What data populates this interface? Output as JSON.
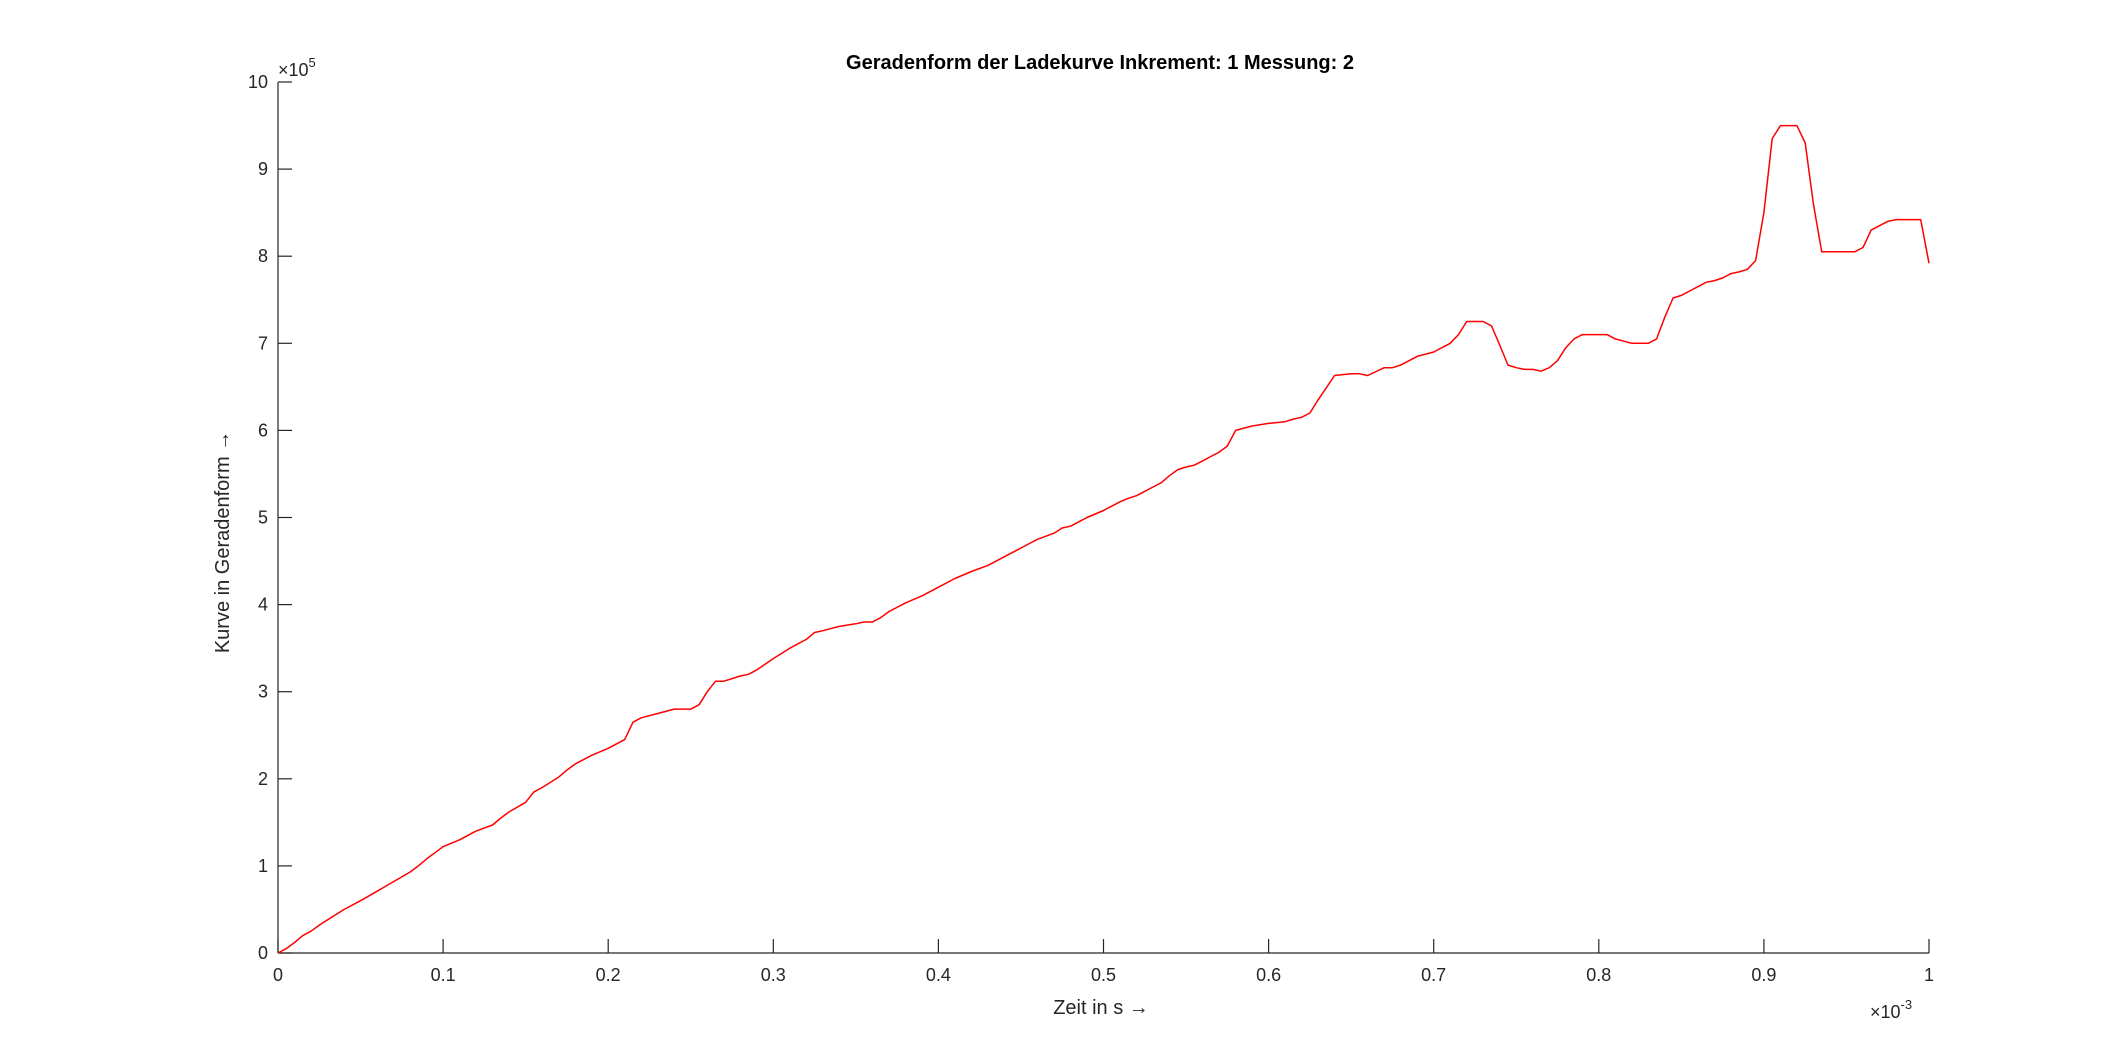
{
  "chart_data": {
    "type": "line",
    "title": "Geradenform der Ladekurve Inkrement: 1 Messung: 2",
    "xlabel": "Zeit in s →",
    "ylabel": "Kurve in Geradenform →",
    "x_multiplier": {
      "base": "×10",
      "exponent": "-3"
    },
    "y_multiplier": {
      "base": "×10",
      "exponent": "5"
    },
    "xlim": [
      0,
      1
    ],
    "ylim": [
      0,
      10
    ],
    "x_ticks": [
      0,
      0.1,
      0.2,
      0.3,
      0.4,
      0.5,
      0.6,
      0.7,
      0.8,
      0.9,
      1
    ],
    "x_tick_labels": [
      "0",
      "0.1",
      "0.2",
      "0.3",
      "0.4",
      "0.5",
      "0.6",
      "0.7",
      "0.8",
      "0.9",
      "1"
    ],
    "y_ticks": [
      0,
      1,
      2,
      3,
      4,
      5,
      6,
      7,
      8,
      9,
      10
    ],
    "y_tick_labels": [
      "0",
      "1",
      "2",
      "3",
      "4",
      "5",
      "6",
      "7",
      "8",
      "9",
      "10"
    ],
    "grid": false,
    "box": false,
    "line_color": "#ff0000",
    "series": [
      {
        "x": [
          0,
          0.005,
          0.01,
          0.015,
          0.02,
          0.025,
          0.03,
          0.04,
          0.05,
          0.06,
          0.07,
          0.08,
          0.085,
          0.09,
          0.1,
          0.11,
          0.12,
          0.13,
          0.135,
          0.14,
          0.15,
          0.155,
          0.16,
          0.17,
          0.175,
          0.18,
          0.19,
          0.2,
          0.21,
          0.215,
          0.22,
          0.23,
          0.24,
          0.25,
          0.255,
          0.26,
          0.265,
          0.27,
          0.28,
          0.285,
          0.29,
          0.3,
          0.31,
          0.32,
          0.325,
          0.33,
          0.34,
          0.35,
          0.355,
          0.36,
          0.365,
          0.37,
          0.38,
          0.39,
          0.4,
          0.41,
          0.42,
          0.43,
          0.44,
          0.45,
          0.455,
          0.46,
          0.47,
          0.475,
          0.48,
          0.485,
          0.49,
          0.5,
          0.51,
          0.515,
          0.52,
          0.53,
          0.535,
          0.54,
          0.545,
          0.55,
          0.555,
          0.56,
          0.565,
          0.57,
          0.575,
          0.58,
          0.59,
          0.6,
          0.61,
          0.615,
          0.62,
          0.625,
          0.63,
          0.64,
          0.65,
          0.655,
          0.66,
          0.67,
          0.675,
          0.68,
          0.69,
          0.7,
          0.71,
          0.715,
          0.72,
          0.73,
          0.735,
          0.74,
          0.745,
          0.75,
          0.755,
          0.76,
          0.765,
          0.77,
          0.775,
          0.78,
          0.785,
          0.79,
          0.8,
          0.805,
          0.81,
          0.82,
          0.83,
          0.835,
          0.84,
          0.845,
          0.85,
          0.855,
          0.86,
          0.865,
          0.87,
          0.875,
          0.88,
          0.885,
          0.89,
          0.895,
          0.9,
          0.905,
          0.91,
          0.915,
          0.92,
          0.925,
          0.93,
          0.935,
          0.94,
          0.95,
          0.955,
          0.96,
          0.965,
          0.97,
          0.975,
          0.98,
          0.99,
          0.995,
          1.0
        ],
        "y": [
          0,
          0.05,
          0.12,
          0.2,
          0.25,
          0.32,
          0.38,
          0.5,
          0.6,
          0.71,
          0.82,
          0.93,
          1.0,
          1.08,
          1.22,
          1.3,
          1.4,
          1.47,
          1.55,
          1.62,
          1.73,
          1.85,
          1.9,
          2.02,
          2.1,
          2.17,
          2.27,
          2.35,
          2.45,
          2.65,
          2.7,
          2.75,
          2.8,
          2.8,
          2.85,
          3.0,
          3.12,
          3.12,
          3.18,
          3.2,
          3.25,
          3.38,
          3.5,
          3.6,
          3.68,
          3.7,
          3.75,
          3.78,
          3.8,
          3.8,
          3.85,
          3.92,
          4.02,
          4.1,
          4.2,
          4.3,
          4.38,
          4.45,
          4.55,
          4.65,
          4.7,
          4.75,
          4.82,
          4.88,
          4.9,
          4.95,
          5.0,
          5.08,
          5.18,
          5.22,
          5.25,
          5.35,
          5.4,
          5.48,
          5.55,
          5.58,
          5.6,
          5.65,
          5.7,
          5.75,
          5.82,
          6.0,
          6.05,
          6.08,
          6.1,
          6.13,
          6.15,
          6.2,
          6.35,
          6.63,
          6.65,
          6.65,
          6.63,
          6.72,
          6.72,
          6.75,
          6.85,
          6.9,
          7.0,
          7.1,
          7.25,
          7.25,
          7.2,
          6.98,
          6.75,
          6.72,
          6.7,
          6.7,
          6.68,
          6.72,
          6.8,
          6.95,
          7.05,
          7.1,
          7.1,
          7.1,
          7.05,
          7.0,
          7.0,
          7.05,
          7.3,
          7.52,
          7.55,
          7.6,
          7.65,
          7.7,
          7.72,
          7.75,
          7.8,
          7.82,
          7.85,
          7.95,
          8.5,
          9.35,
          9.5,
          9.5,
          9.5,
          9.3,
          8.6,
          8.05,
          8.05,
          8.05,
          8.05,
          8.1,
          8.3,
          8.35,
          8.4,
          8.42,
          8.42,
          8.42,
          7.92
        ]
      }
    ]
  }
}
